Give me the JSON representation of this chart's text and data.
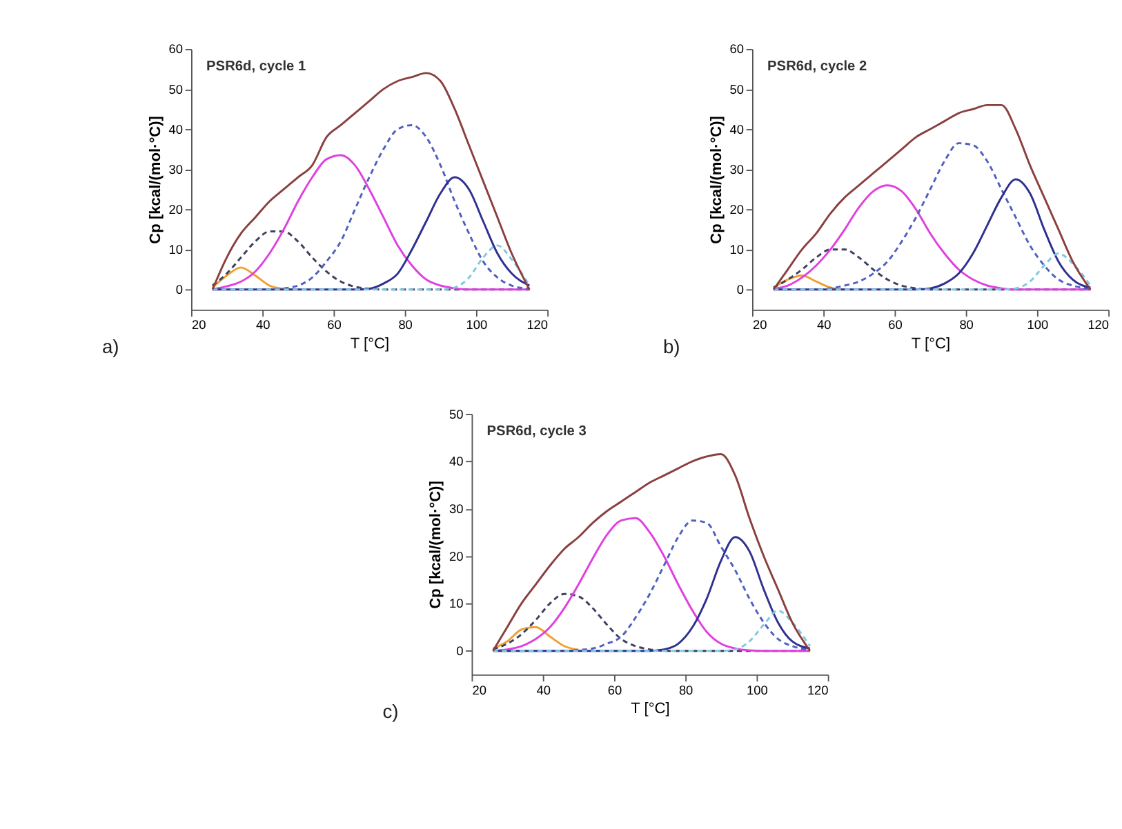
{
  "chart_data": [
    {
      "type": "line",
      "title": "PSR6d, cycle 1",
      "xlabel": "T [°C]",
      "ylabel": "Cp [kcal/(mol·°C)]",
      "annotations": [
        "a)"
      ],
      "xlim": [
        20,
        120
      ],
      "xticks": [
        20,
        40,
        60,
        80,
        100,
        120
      ],
      "ylim": [
        -5,
        60
      ],
      "yticks": [
        0,
        10,
        20,
        30,
        40,
        50,
        60
      ],
      "x": [
        26,
        30,
        34,
        38,
        42,
        46,
        50,
        54,
        58,
        62,
        66,
        70,
        74,
        78,
        82,
        86,
        90,
        94,
        98,
        102,
        106,
        110,
        115
      ],
      "series": [
        {
          "color": "#f0a030",
          "line_style": "solid",
          "values": [
            0.5,
            3.5,
            5.5,
            3.5,
            1,
            0.2,
            0,
            null,
            null,
            null,
            null,
            null,
            null,
            null,
            null,
            null,
            null,
            null,
            null,
            null,
            null,
            null,
            null
          ]
        },
        {
          "color": "#404060",
          "line_style": "dashed",
          "values": [
            1,
            4,
            8,
            12,
            14.5,
            14.5,
            12,
            8,
            4.5,
            2,
            0.7,
            0.2,
            0,
            0,
            0,
            0,
            0,
            0,
            0,
            0,
            0,
            0,
            0
          ]
        },
        {
          "color": "#e040e0",
          "line_style": "solid",
          "values": [
            0.1,
            0.8,
            2,
            4.5,
            9,
            15,
            22,
            28,
            32.5,
            33.5,
            31,
            25,
            18,
            11,
            6,
            2.5,
            1,
            0.3,
            0,
            0,
            0,
            0,
            0
          ]
        },
        {
          "color": "#5060c0",
          "line_style": "dashed",
          "values": [
            0,
            0,
            0,
            0,
            0,
            0.3,
            1,
            3,
            7,
            12,
            20,
            28,
            35,
            40,
            41,
            38,
            31,
            22,
            14,
            7,
            3,
            1,
            0.2
          ]
        },
        {
          "color": "#303090",
          "line_style": "solid",
          "values": [
            0,
            0,
            0,
            0,
            0,
            0,
            0,
            0,
            0,
            0,
            0,
            0.2,
            1.5,
            4,
            10,
            17,
            24,
            28,
            25,
            17,
            9,
            4,
            1
          ]
        },
        {
          "color": "#80c8e0",
          "line_style": "dashed",
          "values": [
            0,
            0,
            0,
            0,
            0,
            0,
            0,
            0,
            0,
            0,
            0,
            0,
            0,
            0,
            0,
            0,
            0,
            0.5,
            3,
            8,
            11,
            7.5,
            1
          ]
        },
        {
          "color": "#8b4040",
          "line_style": "solid",
          "values": [
            0,
            8,
            14,
            18,
            22,
            25,
            28,
            31,
            38,
            41,
            44,
            47,
            50,
            52,
            53,
            54,
            52,
            45,
            36,
            27,
            18,
            9,
            0
          ]
        }
      ]
    },
    {
      "type": "line",
      "title": "PSR6d, cycle 2",
      "xlabel": "T [°C]",
      "ylabel": "Cp [kcal/(mol·°C)]",
      "annotations": [
        "b)"
      ],
      "xlim": [
        20,
        120
      ],
      "xticks": [
        20,
        40,
        60,
        80,
        100,
        120
      ],
      "ylim": [
        -5,
        60
      ],
      "yticks": [
        0,
        10,
        20,
        30,
        40,
        50,
        60
      ],
      "x": [
        26,
        30,
        34,
        38,
        42,
        46,
        50,
        54,
        58,
        62,
        66,
        70,
        74,
        78,
        82,
        86,
        90,
        94,
        98,
        102,
        106,
        110,
        115
      ],
      "series": [
        {
          "color": "#f0a030",
          "line_style": "solid",
          "values": [
            0.5,
            2.5,
            3.5,
            2,
            0.5,
            0,
            null,
            null,
            null,
            null,
            null,
            null,
            null,
            null,
            null,
            null,
            null,
            null,
            null,
            null,
            null,
            null,
            null
          ]
        },
        {
          "color": "#404060",
          "line_style": "dashed",
          "values": [
            0.5,
            2.5,
            5,
            8,
            10,
            10,
            8,
            5,
            2.5,
            1,
            0.3,
            0,
            0,
            0,
            0,
            0,
            0,
            0,
            0,
            0,
            0,
            0,
            0
          ]
        },
        {
          "color": "#e040e0",
          "line_style": "solid",
          "values": [
            0.2,
            1,
            3,
            6,
            10,
            15,
            20.5,
            24.5,
            26,
            24.5,
            20,
            14,
            9,
            5,
            2.5,
            1,
            0.3,
            0,
            0,
            0,
            0,
            0,
            0
          ]
        },
        {
          "color": "#5060c0",
          "line_style": "dashed",
          "values": [
            0,
            0,
            0,
            0,
            0.3,
            1,
            2,
            4,
            7,
            12,
            18,
            25,
            32,
            36.5,
            36,
            32,
            25,
            18,
            11,
            6,
            2.5,
            1,
            0.2
          ]
        },
        {
          "color": "#303090",
          "line_style": "solid",
          "values": [
            0,
            0,
            0,
            0,
            0,
            0,
            0,
            0,
            0,
            0,
            0,
            0.3,
            1.5,
            4,
            9,
            16,
            23,
            27.5,
            24,
            15,
            7,
            2.5,
            0.5
          ]
        },
        {
          "color": "#80c8e0",
          "line_style": "dashed",
          "values": [
            0,
            0,
            0,
            0,
            0,
            0,
            0,
            0,
            0,
            0,
            0,
            0,
            0,
            0,
            0,
            0,
            0,
            0.3,
            2,
            6,
            9,
            6.5,
            1
          ]
        },
        {
          "color": "#8b4040",
          "line_style": "solid",
          "values": [
            0,
            5,
            10,
            14,
            19,
            23,
            26,
            29,
            32,
            35,
            38,
            40,
            42,
            44,
            45,
            46,
            46,
            40,
            31,
            23,
            15,
            7,
            0
          ]
        }
      ]
    },
    {
      "type": "line",
      "title": "PSR6d, cycle 3",
      "xlabel": "T [°C]",
      "ylabel": "Cp [kcal/(mol·°C)]",
      "annotations": [
        "c)"
      ],
      "xlim": [
        20,
        120
      ],
      "xticks": [
        20,
        40,
        60,
        80,
        100,
        120
      ],
      "ylim": [
        -5,
        50
      ],
      "yticks": [
        0,
        10,
        20,
        30,
        40,
        50
      ],
      "x": [
        26,
        30,
        34,
        38,
        42,
        46,
        50,
        54,
        58,
        62,
        66,
        70,
        74,
        78,
        82,
        86,
        90,
        94,
        98,
        102,
        106,
        110,
        115
      ],
      "series": [
        {
          "color": "#f0a030",
          "line_style": "solid",
          "values": [
            0.5,
            2,
            4.5,
            5,
            3,
            1,
            0.2,
            null,
            null,
            null,
            null,
            null,
            null,
            null,
            null,
            null,
            null,
            null,
            null,
            null,
            null,
            null,
            null
          ]
        },
        {
          "color": "#404060",
          "line_style": "dashed",
          "values": [
            0.3,
            1.5,
            3.5,
            6.5,
            10,
            12,
            11.5,
            9,
            5.5,
            2.5,
            1,
            0.3,
            0,
            0,
            0,
            0,
            0,
            0,
            0,
            0,
            0,
            0,
            0
          ]
        },
        {
          "color": "#e040e0",
          "line_style": "solid",
          "values": [
            0,
            0.3,
            1,
            2.5,
            5,
            9,
            14,
            19.5,
            24.5,
            27.5,
            28,
            25,
            20,
            14,
            8.5,
            4,
            1.5,
            0.5,
            0.1,
            0,
            0,
            0,
            0
          ]
        },
        {
          "color": "#5060c0",
          "line_style": "dashed",
          "values": [
            0,
            0,
            0,
            0,
            0,
            0,
            0.2,
            0.5,
            1.5,
            3,
            7,
            12,
            18,
            24,
            27.5,
            27,
            22,
            17,
            11,
            6,
            2.5,
            1,
            0.2
          ]
        },
        {
          "color": "#303090",
          "line_style": "solid",
          "values": [
            0,
            0,
            0,
            0,
            0,
            0,
            0,
            0,
            0,
            0,
            0,
            0,
            0.3,
            1.5,
            5,
            11,
            19,
            24,
            21,
            13,
            6,
            2,
            0.5
          ]
        },
        {
          "color": "#80c8e0",
          "line_style": "dashed",
          "values": [
            0,
            0,
            0,
            0,
            0,
            0,
            0,
            0,
            0,
            0,
            0,
            0,
            0,
            0,
            0,
            0,
            0,
            0.3,
            2,
            5.5,
            8.5,
            6,
            1
          ]
        },
        {
          "color": "#8b4040",
          "line_style": "solid",
          "values": [
            0,
            5,
            10,
            14,
            18,
            21.5,
            24,
            27,
            29.5,
            31.5,
            33.5,
            35.5,
            37,
            38.5,
            40,
            41,
            41.5,
            37,
            28,
            20,
            13,
            6,
            0
          ]
        }
      ]
    }
  ]
}
